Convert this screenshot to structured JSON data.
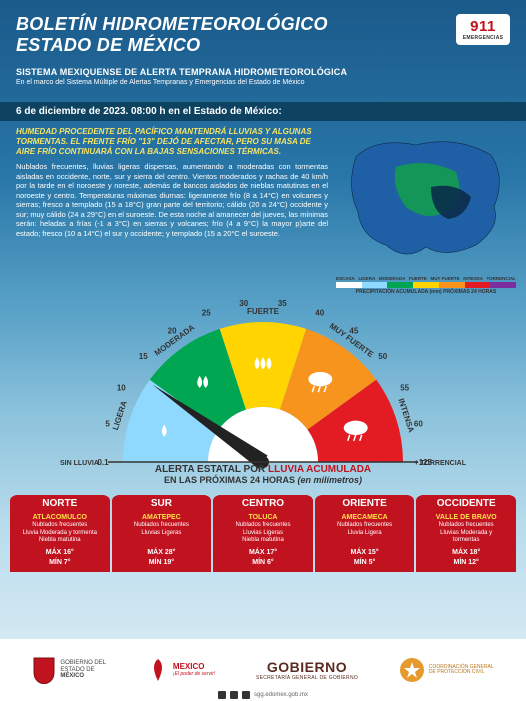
{
  "header": {
    "title_line1": "BOLETÍN HIDROMETEOROLÓGICO",
    "title_line2": "ESTADO DE MÉXICO",
    "emergency_number": "911",
    "emergency_label": "EMERGENCIAS",
    "subtitle": "SISTEMA MEXIQUENSE DE ALERTA TEMPRANA HIDROMETEOROLÓGICA",
    "subtitle_detail": "En el marco del Sistema Múltiple de Alertas Tempranas y Emergencias del Estado de México"
  },
  "timestamp": "6 de diciembre de 2023. 08:00 h en el Estado de México:",
  "headline": "HUMEDAD PROCEDENTE DEL PACÍFICO MANTENDRÁ LLUVIAS Y ALGUNAS TORMENTAS. EL FRENTE FRÍO \"13\" DEJÓ DE AFECTAR, PERO SU MASA DE AIRE FRÍO CONTINUARÁ CON LA BAJAS SENSACIONES TÉRMICAS.",
  "forecast_body": "Nublados frecuentes, lluvias ligeras dispersas, aumentando a moderadas con tormentas aisladas en occidente, norte, sur y sierra del centro. Vientos moderados y rachas de 40 km/h por la tarde en el noroeste y noreste, además de bancos aislados de nieblas matutinas en el noroeste y centro. Temperaturas máximas diurnas: ligeramente frío (8 a 14°C) en volcanes y sierras; fresco a templado (15 a 18°C) gran parte del territorio; cálido (20 a 24°C) occidente y sur; muy cálido (24 a 29°C) en el suroeste. De esta noche al amanecer del jueves, las mínimas serán: heladas a frías (-1 a 3°C) en sierras y volcanes; frío (4 a 9°C) la mayor p)arte del estado; fresco (10 a 14°C) el sur y occidente; y templado (15 a 20°C el suroeste.",
  "map": {
    "legend_labels": [
      "ESCASA",
      "LIGERA",
      "MODERADA",
      "FUERTE",
      "MUY FUERTE",
      "INTENSA",
      "TORRENCIAL"
    ],
    "legend_colors": [
      "#ffffff",
      "#8fd9ff",
      "#00a651",
      "#ffd400",
      "#f7941e",
      "#e31b23",
      "#7a2ea0"
    ],
    "legend_caption": "PRECIPITACIÓN ACUMULADA (mm) PRÓXIMAS 24 HORAS",
    "fill_main": "#1e5fa6",
    "fill_accent1": "#12a04a",
    "fill_accent2": "#0b2c4a"
  },
  "gauge": {
    "categories": [
      "LIGERA",
      "MODERADA",
      "FUERTE",
      "MUY FUERTE",
      "INTENSA"
    ],
    "values_outer": [
      "0.1",
      "5",
      "10",
      "15",
      "20",
      "25",
      "30",
      "35",
      "40",
      "45",
      "50",
      "55",
      "60",
      "+125"
    ],
    "left_label": "SIN LLUVIA",
    "right_label": "TORRENCIAL",
    "alert_line1_pre": "ALERTA ESTATAL POR ",
    "alert_line1_hl": "LLUVIA ACUMULADA",
    "alert_line2_pre": "EN LAS PRÓXIMAS 24 HORAS ",
    "alert_line2_em": "(en milímetros)",
    "band_colors": [
      "#8fd9ff",
      "#00a651",
      "#ffd400",
      "#f7941e",
      "#e31b23"
    ],
    "needle_angle_deg": 35,
    "needle_color": "#222"
  },
  "regions": [
    {
      "name": "NORTE",
      "city": "ATLACOMULCO",
      "cond": "Nublados frecuentes\nLluvia Moderada y tormenta\nNiebla matutina",
      "max": "MÁX 16°",
      "min": "MÍN 7°"
    },
    {
      "name": "SUR",
      "city": "AMATEPEC",
      "cond": "Nublados frecuentes\nLluvias Ligeras",
      "max": "MÁX 28°",
      "min": "MÍN 19°"
    },
    {
      "name": "CENTRO",
      "city": "TOLUCA",
      "cond": "Nublados frecuentes\nLluvias Ligeras\nNiebla matutina",
      "max": "MÁX 17°",
      "min": "MÍN 6°"
    },
    {
      "name": "ORIENTE",
      "city": "AMECAMECA",
      "cond": "Nublados frecuentes\nLluvia Ligera",
      "max": "MÁX 15°",
      "min": "MÍN 5°"
    },
    {
      "name": "OCCIDENTE",
      "city": "VALLE DE BRAVO",
      "cond": "Nublados frecuentes\nLluvias Moderada y\ntormentas",
      "max": "MÁX 18°",
      "min": "MÍN 12°"
    }
  ],
  "region_style": {
    "bg": "#c1121f",
    "city_color": "#ffe14a"
  },
  "footer": {
    "gov_state_l1": "GOBIERNO DEL",
    "gov_state_l2": "ESTADO DE",
    "gov_state_l3": "MÉXICO",
    "mexico_brand": "MEXICO",
    "mexico_tag": "¡El poder de servir!",
    "gov_word": "GOBIERNO",
    "gov_sub": "SECRETARÍA GENERAL DE GOBIERNO",
    "pc_l1": "COORDINACIÓN GENERAL",
    "pc_l2": "DE PROTECCIÓN CIVIL",
    "site": "sgg.edomex.gob.mx"
  }
}
